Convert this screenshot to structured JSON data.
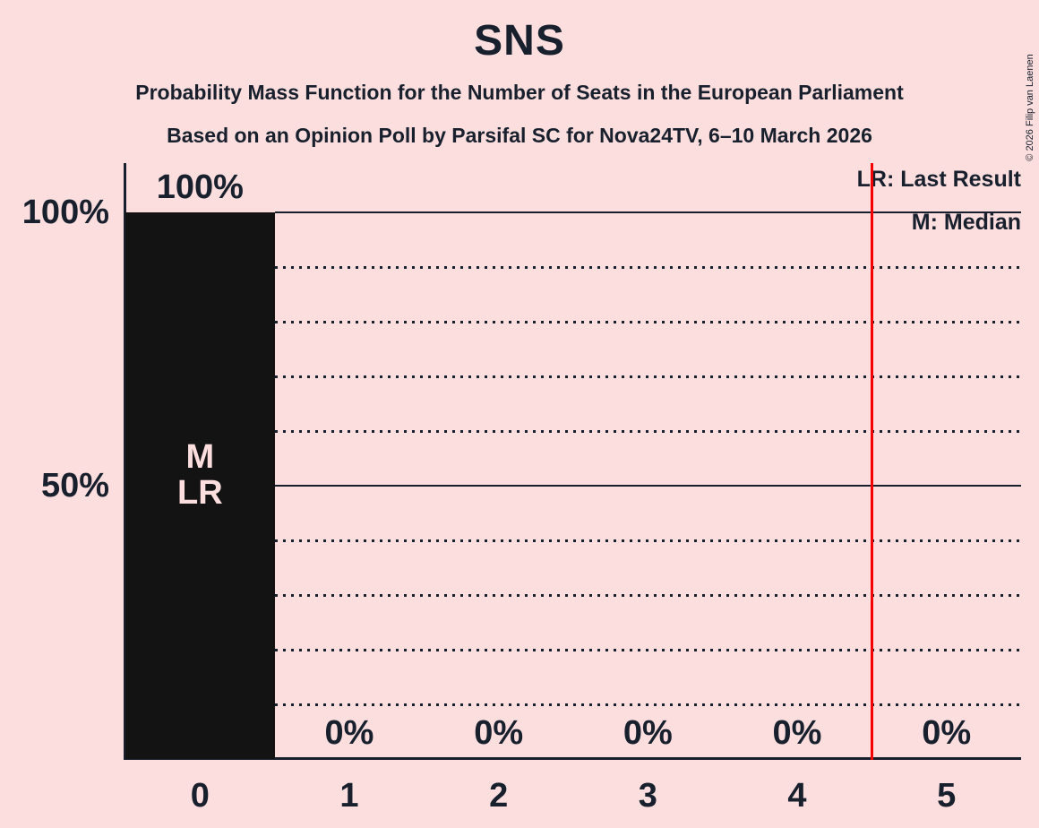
{
  "title": "SNS",
  "subtitle1": "Probability Mass Function for the Number of Seats in the European Parliament",
  "subtitle2": "Based on an Opinion Poll by Parsifal SC for Nova24TV, 6–10 March 2026",
  "copyright": "© 2026 Filip van Laenen",
  "legend": {
    "lr": "LR: Last Result",
    "m": "M: Median"
  },
  "colors": {
    "background": "#fcdede",
    "bar": "#131313",
    "text": "#18202e",
    "bar_annotation_text": "#fcdede",
    "lr_line": "#f40000"
  },
  "chart_data": {
    "type": "bar",
    "categories": [
      "0",
      "1",
      "2",
      "3",
      "4",
      "5"
    ],
    "values": [
      100,
      0,
      0,
      0,
      0,
      0
    ],
    "bar_labels": [
      "100%",
      "0%",
      "0%",
      "0%",
      "0%",
      "0%"
    ],
    "title": "SNS",
    "xlabel": "",
    "ylabel": "",
    "ylim": [
      0,
      100
    ],
    "y_ticks": [
      {
        "label": "100%",
        "value": 100
      },
      {
        "label": "50%",
        "value": 50
      }
    ],
    "solid_gridlines": [
      100,
      50
    ],
    "dotted_gridlines": [
      90,
      80,
      70,
      60,
      40,
      30,
      20,
      10
    ],
    "lr_marker_x_seats": 4.5,
    "median_seats": 0,
    "last_result_seats": 0,
    "bar_annotations": [
      {
        "category": "0",
        "lines": [
          "M",
          "LR"
        ]
      }
    ],
    "legend_position": "top-right",
    "grid": "horizontal-dotted-with-solid-50-100"
  }
}
